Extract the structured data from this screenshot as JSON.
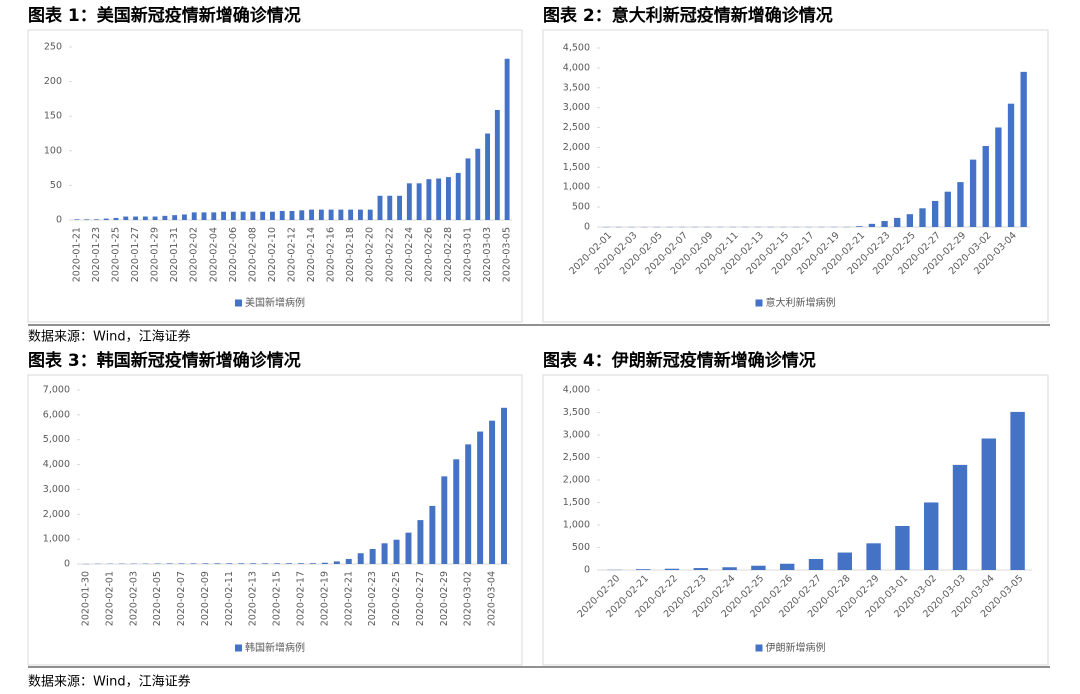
{
  "chart_data": [
    {
      "type": "bar",
      "title": "图表 1：美国新冠疫情新增确诊情况",
      "categories": [
        "2020-01-21",
        null,
        "2020-01-23",
        null,
        "2020-01-25",
        null,
        "2020-01-27",
        null,
        "2020-01-29",
        null,
        "2020-01-31",
        null,
        "2020-02-02",
        null,
        "2020-02-04",
        null,
        "2020-02-06",
        null,
        "2020-02-08",
        null,
        "2020-02-10",
        null,
        "2020-02-12",
        null,
        "2020-02-14",
        null,
        "2020-02-16",
        null,
        "2020-02-18",
        null,
        "2020-02-20",
        null,
        "2020-02-22",
        null,
        "2020-02-24",
        null,
        "2020-02-26",
        null,
        "2020-02-28",
        null,
        "2020-03-01",
        null,
        "2020-03-03",
        null,
        "2020-03-05"
      ],
      "series": [
        {
          "name": "美国新增病例",
          "color": "#4472c4",
          "values": [
            1,
            1,
            1,
            2,
            3,
            5,
            5,
            5,
            5,
            6,
            7,
            8,
            11,
            11,
            11,
            12,
            12,
            12,
            12,
            12,
            12,
            13,
            13,
            14,
            15,
            15,
            15,
            15,
            15,
            15,
            15,
            35,
            35,
            35,
            53,
            53,
            59,
            60,
            62,
            68,
            89,
            103,
            125,
            159,
            233
          ]
        }
      ],
      "ylim": [
        0,
        250
      ],
      "yticks": [
        0,
        50,
        100,
        150,
        200,
        250
      ],
      "legend": "bottom"
    },
    {
      "type": "bar",
      "title": "图表 2：意大利新冠疫情新增确诊情况",
      "categories": [
        "2020-02-01",
        null,
        "2020-02-03",
        null,
        "2020-02-05",
        null,
        "2020-02-07",
        null,
        "2020-02-09",
        null,
        "2020-02-11",
        null,
        "2020-02-13",
        null,
        "2020-02-15",
        null,
        "2020-02-17",
        null,
        "2020-02-19",
        null,
        "2020-02-21",
        null,
        "2020-02-23",
        null,
        "2020-02-25",
        null,
        "2020-02-27",
        null,
        "2020-02-29",
        null,
        "2020-03-02",
        null,
        "2020-03-04",
        null
      ],
      "series": [
        {
          "name": "意大利新增病例",
          "color": "#4472c4",
          "values": [
            2,
            2,
            2,
            2,
            2,
            2,
            3,
            3,
            3,
            3,
            3,
            3,
            3,
            3,
            3,
            3,
            3,
            3,
            3,
            3,
            20,
            79,
            150,
            229,
            322,
            470,
            655,
            888,
            1128,
            1694,
            2036,
            2502,
            3100,
            3900
          ]
        }
      ],
      "ylim": [
        0,
        4500
      ],
      "yticks": [
        0,
        500,
        {
          "value": 1000,
          "label": "1,000"
        },
        {
          "value": 1500,
          "label": "1,500"
        },
        {
          "value": 2000,
          "label": "2,000"
        },
        {
          "value": 2500,
          "label": "2,500"
        },
        {
          "value": 3000,
          "label": "3,000"
        },
        {
          "value": 3500,
          "label": "3,500"
        },
        {
          "value": 4000,
          "label": "4,000"
        },
        {
          "value": 4500,
          "label": "4,500"
        }
      ],
      "legend": "bottom"
    },
    {
      "type": "bar",
      "title": "图表 3：韩国新冠疫情新增确诊情况",
      "categories": [
        "2020-01-30",
        null,
        "2020-02-01",
        null,
        "2020-02-03",
        null,
        "2020-02-05",
        null,
        "2020-02-07",
        null,
        "2020-02-09",
        null,
        "2020-02-11",
        null,
        "2020-02-13",
        null,
        "2020-02-15",
        null,
        "2020-02-17",
        null,
        "2020-02-19",
        null,
        "2020-02-21",
        null,
        "2020-02-23",
        null,
        "2020-02-25",
        null,
        "2020-02-27",
        null,
        "2020-02-29",
        null,
        "2020-03-02",
        null,
        "2020-03-04",
        null
      ],
      "series": [
        {
          "name": "韩国新增病例",
          "color": "#4472c4",
          "values": [
            4,
            11,
            12,
            15,
            15,
            16,
            19,
            23,
            24,
            24,
            27,
            27,
            28,
            28,
            28,
            28,
            28,
            29,
            30,
            31,
            51,
            104,
            204,
            433,
            602,
            833,
            977,
            1261,
            1766,
            2337,
            3526,
            4212,
            4812,
            5328,
            5766,
            6284
          ]
        }
      ],
      "ylim": [
        0,
        7000
      ],
      "yticks": [
        0,
        {
          "value": 1000,
          "label": "1,000"
        },
        {
          "value": 2000,
          "label": "2,000"
        },
        {
          "value": 3000,
          "label": "3,000"
        },
        {
          "value": 4000,
          "label": "4,000"
        },
        {
          "value": 5000,
          "label": "5,000"
        },
        {
          "value": 6000,
          "label": "6,000"
        },
        {
          "value": 7000,
          "label": "7,000"
        }
      ],
      "legend": "bottom"
    },
    {
      "type": "bar",
      "title": "图表 4：伊朗新冠疫情新增确诊情况",
      "categories": [
        "2020-02-20",
        "2020-02-21",
        "2020-02-22",
        "2020-02-23",
        "2020-02-24",
        "2020-02-25",
        "2020-02-26",
        "2020-02-27",
        "2020-02-28",
        "2020-02-29",
        "2020-03-01",
        "2020-03-02",
        "2020-03-03",
        "2020-03-04",
        "2020-03-05"
      ],
      "series": [
        {
          "name": "伊朗新增病例",
          "color": "#4472c4",
          "values": [
            5,
            18,
            28,
            43,
            61,
            95,
            139,
            245,
            388,
            593,
            978,
            1501,
            2336,
            2922,
            3513
          ]
        }
      ],
      "ylim": [
        0,
        4000
      ],
      "yticks": [
        0,
        500,
        {
          "value": 1000,
          "label": "1,000"
        },
        {
          "value": 1500,
          "label": "1,500"
        },
        {
          "value": 2000,
          "label": "2,000"
        },
        {
          "value": 2500,
          "label": "2,500"
        },
        {
          "value": 3000,
          "label": "3,000"
        },
        {
          "value": 3500,
          "label": "3,500"
        },
        {
          "value": 4000,
          "label": "4,000"
        }
      ],
      "legend": "bottom"
    }
  ],
  "sources": [
    "数据来源：Wind，江海证券",
    "数据来源：Wind，江海证券"
  ]
}
